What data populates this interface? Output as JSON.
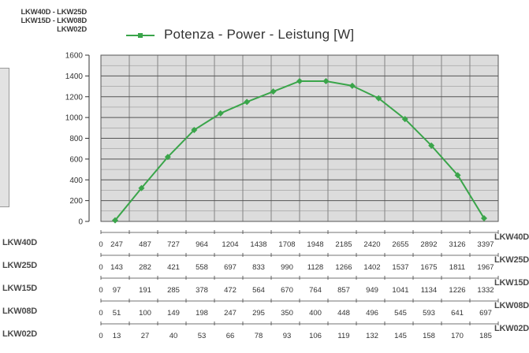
{
  "header": {
    "models_line1": "LKW40D - LKW25D",
    "models_line2": "LKW15D - LKW08D",
    "models_line3": "LKW02D"
  },
  "legend": {
    "label": "Potenza - Power - Leistung [W]",
    "color": "#3aa54a"
  },
  "chart_data": {
    "type": "line",
    "title": "",
    "ylim": [
      0,
      1600
    ],
    "y_ticks": [
      "1600",
      "1400",
      "1200",
      "1000",
      "800",
      "600",
      "400",
      "200",
      "0"
    ],
    "grid": true,
    "legend_position": "top",
    "series": [
      {
        "name": "Potenza - Power - Leistung [W]",
        "color": "#3aa54a",
        "x": [
          0,
          1,
          2,
          3,
          4,
          5,
          6,
          7,
          8,
          9,
          10,
          11,
          12,
          13,
          14
        ],
        "values": [
          10,
          320,
          620,
          880,
          1040,
          1150,
          1250,
          1350,
          1350,
          1305,
          1185,
          985,
          730,
          445,
          30
        ]
      }
    ],
    "x_scales": [
      {
        "label": "LKW40D",
        "start": "0",
        "ticks": [
          "247",
          "487",
          "727",
          "964",
          "1204",
          "1438",
          "1708",
          "1948",
          "2185",
          "2420",
          "2655",
          "2892",
          "3126",
          "3397"
        ]
      },
      {
        "label": "LKW25D",
        "start": "0",
        "ticks": [
          "143",
          "282",
          "421",
          "558",
          "697",
          "833",
          "990",
          "1128",
          "1266",
          "1402",
          "1537",
          "1675",
          "1811",
          "1967"
        ]
      },
      {
        "label": "LKW15D",
        "start": "0",
        "ticks": [
          "97",
          "191",
          "285",
          "378",
          "472",
          "564",
          "670",
          "764",
          "857",
          "949",
          "1041",
          "1134",
          "1226",
          "1332"
        ]
      },
      {
        "label": "LKW08D",
        "start": "0",
        "ticks": [
          "51",
          "100",
          "149",
          "198",
          "247",
          "295",
          "350",
          "400",
          "448",
          "496",
          "545",
          "593",
          "641",
          "697"
        ]
      },
      {
        "label": "LKW02D",
        "start": "0",
        "ticks": [
          "13",
          "27",
          "40",
          "53",
          "66",
          "78",
          "93",
          "106",
          "119",
          "132",
          "145",
          "158",
          "170",
          "185"
        ]
      }
    ]
  }
}
